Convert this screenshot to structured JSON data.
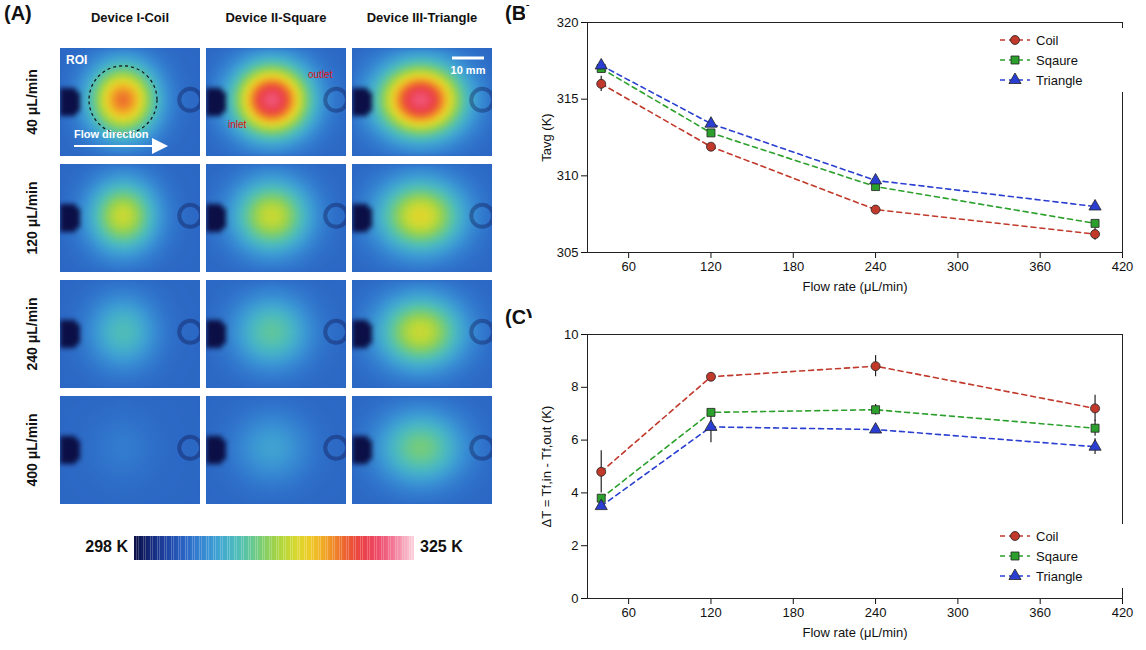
{
  "chart_data": [
    {
      "type": "heatmap",
      "title": "(A)",
      "columns": [
        "Device I-Coil",
        "Device II-Square",
        "Device III-Triangle"
      ],
      "rows": [
        "40 μL/min",
        "120 μL/min",
        "240 μL/min",
        "400 μL/min"
      ],
      "cells": [
        [
          318,
          322,
          322
        ],
        [
          313,
          313,
          314
        ],
        [
          308,
          309,
          313
        ],
        [
          304,
          306,
          310
        ]
      ],
      "background": 303,
      "colorbar": {
        "range": [
          298,
          325
        ],
        "ticks": [
          {
            "value": 298,
            "label": "298 K"
          },
          {
            "value": 325,
            "label": "325 K"
          }
        ]
      },
      "annotations": [
        "ROI",
        "Flow direction",
        "inlet",
        "outlet",
        "10 mm"
      ]
    },
    {
      "type": "line",
      "title": "(B)",
      "x": [
        40,
        120,
        240,
        400
      ],
      "xlim": [
        30,
        420
      ],
      "xticks": [
        60,
        120,
        180,
        240,
        300,
        360,
        420
      ],
      "ylim": [
        305,
        320
      ],
      "yticks": [
        305,
        310,
        315,
        320
      ],
      "xlabel": "Flow rate (μL/min)",
      "ylabel": "Tavg (K)",
      "legend": "top-right",
      "series": [
        {
          "name": "Coil",
          "color": "#c0392b",
          "marker": "circle",
          "line_style": "dashed",
          "values": [
            316.0,
            311.9,
            307.8,
            306.2
          ],
          "errors": [
            0.5,
            0.1,
            0.1,
            0.4
          ]
        },
        {
          "name": "Sqaure",
          "color": "#2ca02c",
          "marker": "square",
          "line_style": "dashed",
          "values": [
            317.0,
            312.8,
            309.3,
            306.9
          ],
          "errors": [
            0.2,
            0.1,
            0.2,
            0.1
          ]
        },
        {
          "name": "Triangle",
          "color": "#2a3fd1",
          "marker": "triangle",
          "line_style": "dashed",
          "values": [
            317.2,
            313.4,
            309.7,
            308.0
          ],
          "errors": [
            0.2,
            0.1,
            0.2,
            0.1
          ]
        }
      ]
    },
    {
      "type": "line",
      "title": "(C)",
      "x": [
        40,
        120,
        240,
        400
      ],
      "xlim": [
        30,
        420
      ],
      "xticks": [
        60,
        120,
        180,
        240,
        300,
        360,
        420
      ],
      "ylim": [
        0,
        10
      ],
      "yticks": [
        0,
        2,
        4,
        6,
        8,
        10
      ],
      "xlabel": "Flow rate (μL/min)",
      "ylabel": "ΔT = Tf,in - Tf,out (K)",
      "legend": "bottom-right",
      "series": [
        {
          "name": "Coil",
          "color": "#c0392b",
          "marker": "circle",
          "line_style": "dashed",
          "values": [
            4.8,
            8.4,
            8.8,
            7.2
          ],
          "errors": [
            0.8,
            0.15,
            0.4,
            0.5
          ]
        },
        {
          "name": "Sqaure",
          "color": "#2ca02c",
          "marker": "square",
          "line_style": "dashed",
          "values": [
            3.8,
            7.05,
            7.15,
            6.45
          ],
          "errors": [
            0.1,
            0.1,
            0.2,
            0.3
          ]
        },
        {
          "name": "Triangle",
          "color": "#2a3fd1",
          "marker": "triangle",
          "line_style": "dashed",
          "values": [
            3.5,
            6.5,
            6.4,
            5.75
          ],
          "errors": [
            0.1,
            0.6,
            0.1,
            0.3
          ]
        }
      ]
    }
  ]
}
